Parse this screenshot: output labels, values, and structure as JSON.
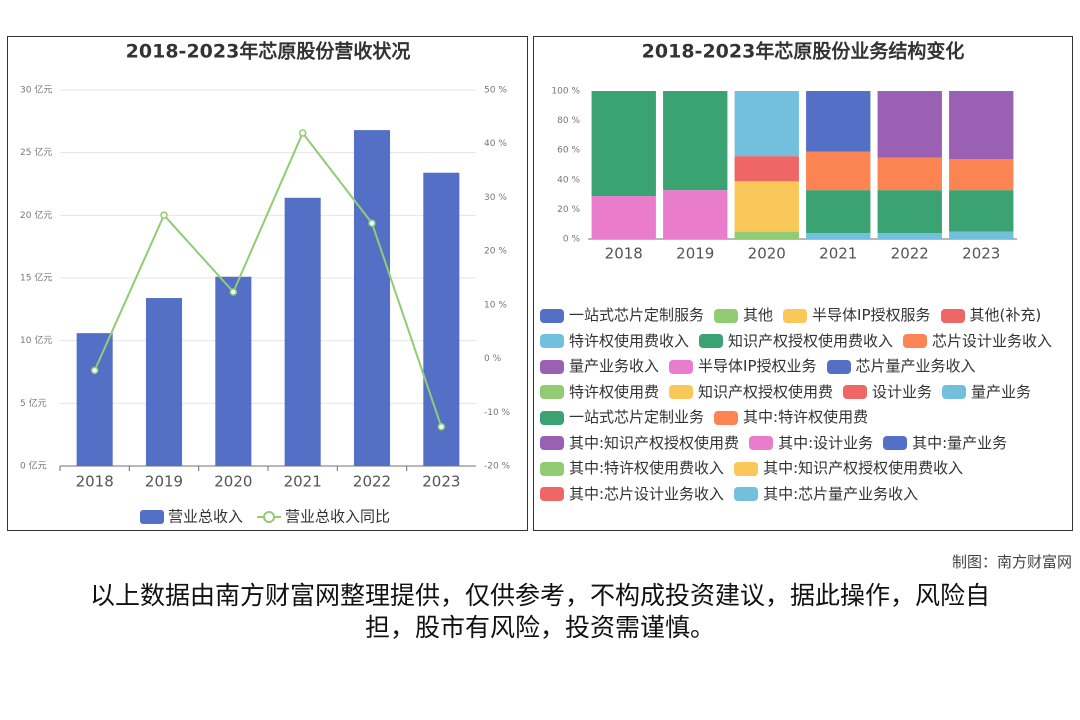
{
  "chart_data": [
    {
      "type": "bar",
      "title": "2018-2023年芯原股份营收状况",
      "categories": [
        "2018",
        "2019",
        "2020",
        "2021",
        "2022",
        "2023"
      ],
      "series": [
        {
          "name": "营业总收入",
          "color": "#5470c6",
          "values": [
            10.6,
            13.4,
            15.1,
            21.4,
            26.8,
            23.4
          ]
        },
        {
          "name": "营业总收入同比",
          "color": "#91cc75",
          "type": "line",
          "axis": "y2",
          "values": [
            -2.2,
            26.7,
            12.4,
            42.0,
            25.2,
            -12.7
          ]
        }
      ],
      "ylim": [
        0,
        30
      ],
      "yticks": [
        {
          "value": 0,
          "label": "0 亿元"
        },
        {
          "value": 5,
          "label": "5 亿元"
        },
        {
          "value": 10,
          "label": "10 亿元"
        },
        {
          "value": 15,
          "label": "15 亿元"
        },
        {
          "value": 20,
          "label": "20 亿元"
        },
        {
          "value": 25,
          "label": "25 亿元"
        },
        {
          "value": 30,
          "label": "30 亿元"
        }
      ],
      "y2lim": [
        -20,
        50
      ],
      "y2ticks": [
        {
          "value": -20,
          "label": "-20 %"
        },
        {
          "value": -10,
          "label": "-10 %"
        },
        {
          "value": 0,
          "label": "0 %"
        },
        {
          "value": 10,
          "label": "10 %"
        },
        {
          "value": 20,
          "label": "20 %"
        },
        {
          "value": 30,
          "label": "30 %"
        },
        {
          "value": 40,
          "label": "40 %"
        },
        {
          "value": 50,
          "label": "50 %"
        }
      ],
      "grid": true,
      "legend": "bottom"
    },
    {
      "type": "stacked_bar",
      "title": "2018-2023年芯原股份业务结构变化",
      "categories": [
        "2018",
        "2019",
        "2020",
        "2021",
        "2022",
        "2023"
      ],
      "series": [
        {
          "name": "一站式芯片定制服务",
          "color": "#5470c6",
          "values": [
            null,
            null,
            null,
            null,
            null,
            null
          ]
        },
        {
          "name": "其他",
          "color": "#91cc75",
          "values": [
            null,
            null,
            null,
            null,
            null,
            null
          ]
        },
        {
          "name": "半导体IP授权服务",
          "color": "#fac858",
          "values": [
            null,
            null,
            null,
            null,
            null,
            null
          ]
        },
        {
          "name": "其他(补充)",
          "color": "#ee6666",
          "values": [
            null,
            null,
            null,
            null,
            null,
            null
          ]
        },
        {
          "name": "特许权使用费收入",
          "color": "#73c0de",
          "values": [
            null,
            null,
            null,
            4,
            4,
            5
          ]
        },
        {
          "name": "知识产权授权使用费收入",
          "color": "#3ba272",
          "values": [
            null,
            null,
            null,
            29,
            29,
            28
          ]
        },
        {
          "name": "芯片设计业务收入",
          "color": "#fc8452",
          "values": [
            null,
            null,
            null,
            26,
            22,
            21
          ]
        },
        {
          "name": "量产业务收入",
          "color": "#9a60b4",
          "values": [
            null,
            null,
            null,
            null,
            45,
            46
          ]
        },
        {
          "name": "半导体IP授权业务",
          "color": "#ea7ccc",
          "values": [
            29,
            33,
            null,
            null,
            null,
            null
          ]
        },
        {
          "name": "芯片量产业务收入",
          "color": "#5470c6",
          "values": [
            null,
            null,
            null,
            41,
            null,
            null
          ]
        },
        {
          "name": "特许权使用费",
          "color": "#91cc75",
          "values": [
            null,
            null,
            5,
            null,
            null,
            null
          ]
        },
        {
          "name": "知识产权授权使用费",
          "color": "#fac858",
          "values": [
            null,
            null,
            34,
            null,
            null,
            null
          ]
        },
        {
          "name": "设计业务",
          "color": "#ee6666",
          "values": [
            null,
            null,
            17,
            null,
            null,
            null
          ]
        },
        {
          "name": "量产业务",
          "color": "#73c0de",
          "values": [
            null,
            null,
            44,
            null,
            null,
            null
          ]
        },
        {
          "name": "一站式芯片定制业务",
          "color": "#3ba272",
          "values": [
            71,
            67,
            null,
            null,
            null,
            null
          ]
        },
        {
          "name": "其中:特许权使用费",
          "color": "#fc8452",
          "values": [
            null,
            null,
            null,
            null,
            null,
            null
          ]
        },
        {
          "name": "其中:知识产权授权使用费",
          "color": "#9a60b4",
          "values": [
            null,
            null,
            null,
            null,
            null,
            null
          ]
        },
        {
          "name": "其中:设计业务",
          "color": "#ea7ccc",
          "values": [
            null,
            null,
            null,
            null,
            null,
            null
          ]
        },
        {
          "name": "其中:量产业务",
          "color": "#5470c6",
          "values": [
            null,
            null,
            null,
            null,
            null,
            null
          ]
        },
        {
          "name": "其中:特许权使用费收入",
          "color": "#91cc75",
          "values": [
            null,
            null,
            null,
            null,
            null,
            null
          ]
        },
        {
          "name": "其中:知识产权授权使用费收入",
          "color": "#fac858",
          "values": [
            null,
            null,
            null,
            null,
            null,
            null
          ]
        },
        {
          "name": "其中:芯片设计业务收入",
          "color": "#ee6666",
          "values": [
            null,
            null,
            null,
            null,
            null,
            null
          ]
        },
        {
          "name": "其中:芯片量产业务收入",
          "color": "#73c0de",
          "values": [
            null,
            null,
            null,
            null,
            null,
            null
          ]
        }
      ],
      "ylim": [
        0,
        100
      ],
      "yticks": [
        {
          "value": 0,
          "label": "0 %"
        },
        {
          "value": 20,
          "label": "20 %"
        },
        {
          "value": 40,
          "label": "40 %"
        },
        {
          "value": 60,
          "label": "60 %"
        },
        {
          "value": 80,
          "label": "80 %"
        },
        {
          "value": 100,
          "label": "100 %"
        }
      ],
      "grid": false,
      "legend": "bottom"
    }
  ],
  "credit": "制图：南方财富网",
  "disclaimer": "以上数据由南方财富网整理提供，仅供参考，不构成投资建议，据此操作，风险自担，股市有风险，投资需谨慎。"
}
